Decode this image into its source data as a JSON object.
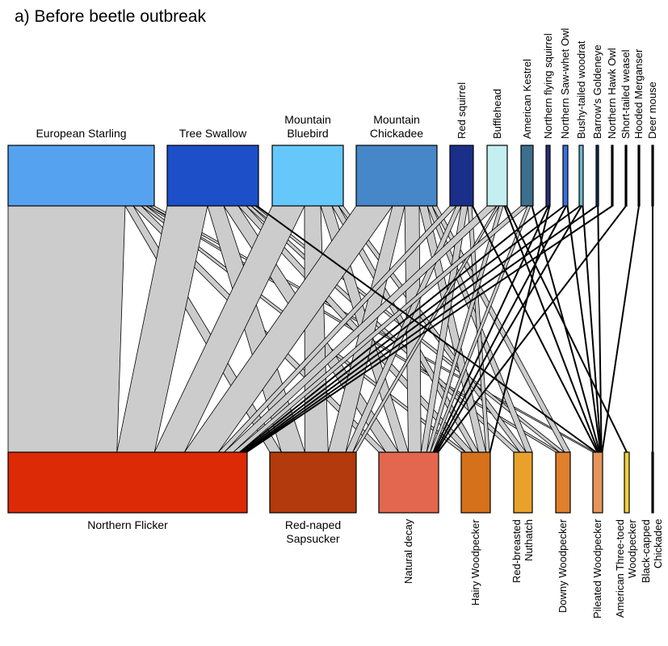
{
  "title": "a) Before beetle outbreak",
  "top_nodes": [
    {
      "label": "European Starling",
      "color": "#55a3f0"
    },
    {
      "label": "Tree Swallow",
      "color": "#1c4fc8"
    },
    {
      "label": "Mountain Bluebird",
      "color": "#66c8fa"
    },
    {
      "label": "Mountain Chickadee",
      "color": "#4587c8"
    },
    {
      "label": "Red squirrel",
      "color": "#1a2f8a"
    },
    {
      "label": "Bufflehead",
      "color": "#c4eef0"
    },
    {
      "label": "American Kestrel",
      "color": "#3b6f8c"
    },
    {
      "label": "Northern flying squirrel",
      "color": "#26307a"
    },
    {
      "label": "Northern Saw-whet Owl",
      "color": "#3a70e0"
    },
    {
      "label": "Bushy-tailed woodrat",
      "color": "#6ab8cc"
    },
    {
      "label": "Barrow's Goldeneye",
      "color": "#1a2a5a"
    },
    {
      "label": "Northern Hawk Owl",
      "color": "#000000"
    },
    {
      "label": "Short-tailed weasel",
      "color": "#000000"
    },
    {
      "label": "Hooded Merganser",
      "color": "#000000"
    },
    {
      "label": "Deer mouse",
      "color": "#000000"
    }
  ],
  "bottom_nodes": [
    {
      "label": "Northern Flicker",
      "color": "#dd2a06"
    },
    {
      "label": "Red-naped Sapsucker",
      "color": "#b23a0c"
    },
    {
      "label": "Natural decay",
      "color": "#e2674e"
    },
    {
      "label": "Hairy Woodpecker",
      "color": "#d4711a"
    },
    {
      "label": "Red-breasted Nuthatch",
      "color": "#e8a22c"
    },
    {
      "label": "Downy Woodpecker",
      "color": "#e07f2c"
    },
    {
      "label": "Pileated Woodpecker",
      "color": "#e6955a"
    },
    {
      "label": "American Three-toed Woodpecker",
      "color": "#f0d03a"
    },
    {
      "label": "Black-capped Chickadee",
      "color": "#000000"
    }
  ]
}
